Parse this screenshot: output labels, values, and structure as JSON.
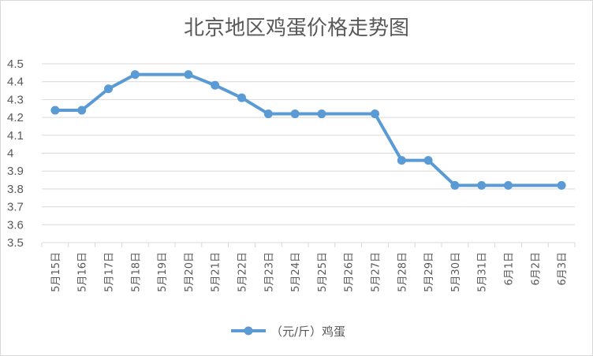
{
  "chart_data": {
    "type": "line",
    "title": "北京地区鸡蛋价格走势图",
    "categories": [
      "5月15日",
      "5月16日",
      "5月17日",
      "5月18日",
      "5月19日",
      "5月20日",
      "5月21日",
      "5月22日",
      "5月23日",
      "5月24日",
      "5月25日",
      "5月26日",
      "5月27日",
      "5月28日",
      "5月29日",
      "5月30日",
      "5月31日",
      "6月1日",
      "6月2日",
      "6月3日"
    ],
    "series": [
      {
        "name": "（元/斤）鸡蛋",
        "values": [
          4.24,
          4.24,
          4.36,
          4.44,
          4.44,
          4.44,
          4.38,
          4.31,
          4.22,
          4.22,
          4.22,
          4.22,
          4.22,
          3.96,
          3.96,
          3.82,
          3.82,
          3.82,
          3.82,
          3.82
        ],
        "markers": [
          true,
          true,
          true,
          true,
          false,
          true,
          true,
          true,
          true,
          true,
          true,
          false,
          true,
          true,
          true,
          true,
          true,
          true,
          false,
          true
        ]
      }
    ],
    "ylim": [
      3.5,
      4.5
    ],
    "yticks": [
      3.5,
      3.6,
      3.7,
      3.8,
      3.9,
      4,
      4.1,
      4.2,
      4.3,
      4.4,
      4.5
    ],
    "ytick_labels": [
      "3.5",
      "3.6",
      "3.7",
      "3.8",
      "3.9",
      "4",
      "4.1",
      "4.2",
      "4.3",
      "4.4",
      "4.5"
    ],
    "xlabel": "",
    "ylabel": "",
    "grid": true,
    "legend": "bottom",
    "colors": {
      "line": "#5b9bd5",
      "grid": "#d9d9d9",
      "text": "#595959",
      "border": "#d9d9d9"
    }
  }
}
